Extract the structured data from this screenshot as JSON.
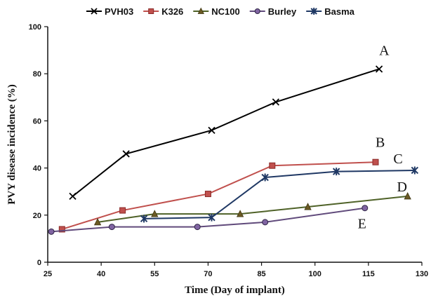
{
  "chart_data": {
    "type": "line",
    "title": "",
    "xlabel": "Time (Day of implant)",
    "ylabel": "PVY disease incidence (%)",
    "xlim": [
      25,
      130
    ],
    "ylim": [
      0,
      100
    ],
    "xticks": [
      25,
      40,
      55,
      70,
      85,
      100,
      115,
      130
    ],
    "yticks": [
      0,
      20,
      40,
      60,
      80,
      100
    ],
    "grid": false,
    "legend_position": "top",
    "series": [
      {
        "name": "PVH03",
        "marker": "x",
        "color": "#000000",
        "x": [
          32,
          47,
          71,
          89,
          118
        ],
        "y": [
          28,
          46,
          56,
          68,
          82
        ]
      },
      {
        "name": "K326",
        "marker": "square",
        "color": "#c0504d",
        "x": [
          29,
          46,
          70,
          88,
          117
        ],
        "y": [
          14,
          22,
          29,
          41,
          42.5
        ]
      },
      {
        "name": "NC100",
        "marker": "triangle",
        "color": "#4f6228",
        "x": [
          39,
          55,
          79,
          98,
          126
        ],
        "y": [
          17,
          20.5,
          20.5,
          23.5,
          28
        ]
      },
      {
        "name": "Burley",
        "marker": "circle",
        "color": "#604a7b",
        "x": [
          26,
          43,
          67,
          86,
          114
        ],
        "y": [
          13,
          15,
          15,
          17,
          23
        ]
      },
      {
        "name": "Basma",
        "marker": "asterisk",
        "color": "#1f3864",
        "x": [
          52,
          71,
          86,
          106,
          128
        ],
        "y": [
          18.5,
          19,
          36,
          38.5,
          39
        ]
      }
    ],
    "annotations": [
      {
        "text": "A",
        "x": 118,
        "y": 88
      },
      {
        "text": "B",
        "x": 117,
        "y": 49
      },
      {
        "text": "C",
        "x": 122,
        "y": 42
      },
      {
        "text": "D",
        "x": 123,
        "y": 30
      },
      {
        "text": "E",
        "x": 112,
        "y": 14.5
      }
    ]
  }
}
